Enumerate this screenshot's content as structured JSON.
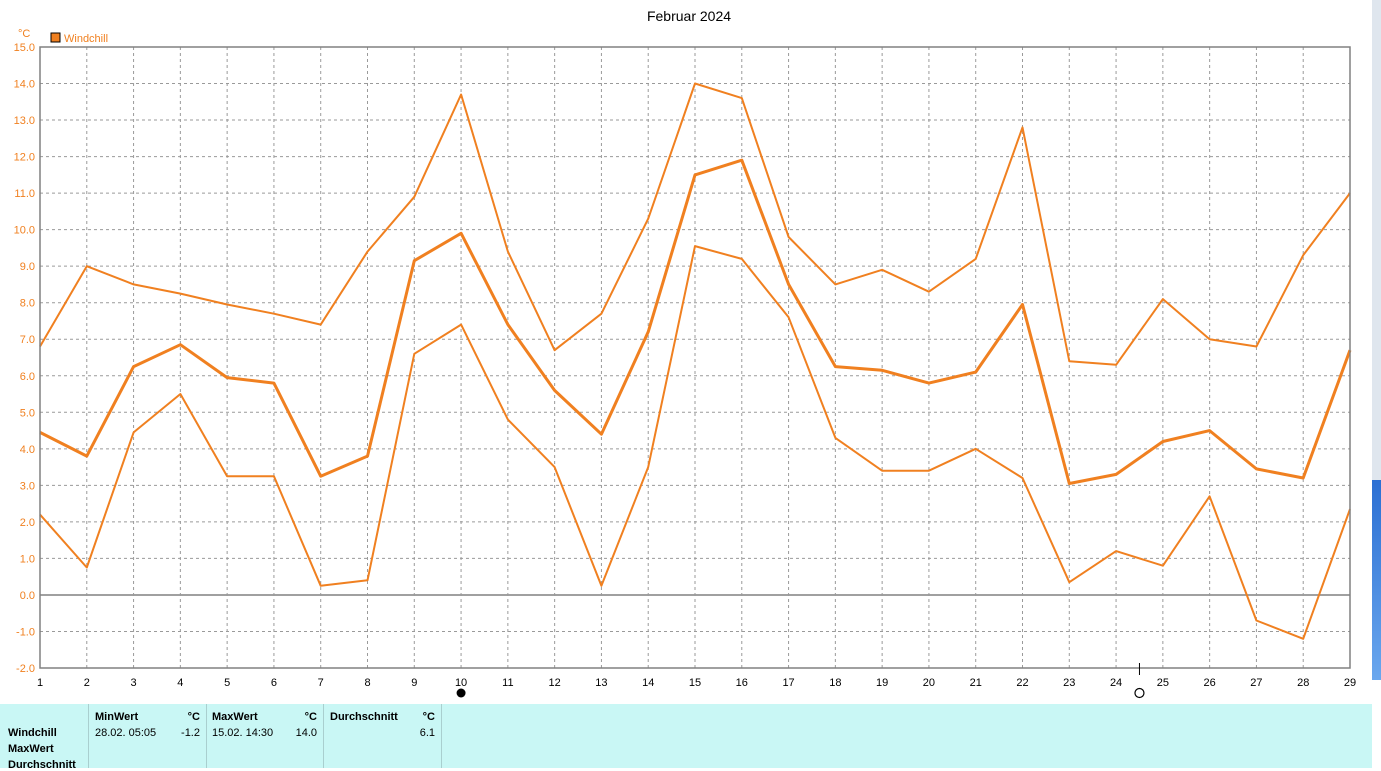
{
  "chart_data": {
    "type": "line",
    "title": "Februar 2024",
    "ylabel": "°C",
    "legend": "Windchill",
    "legend_position": "top-left",
    "grid": true,
    "x": [
      1,
      2,
      3,
      4,
      5,
      6,
      7,
      8,
      9,
      10,
      11,
      12,
      13,
      14,
      15,
      16,
      17,
      18,
      19,
      20,
      21,
      22,
      23,
      24,
      25,
      26,
      27,
      28,
      29
    ],
    "ylim": [
      -2.0,
      15.0
    ],
    "yticks": [
      "15.0",
      "14.0",
      "13.0",
      "12.0",
      "11.0",
      "10.0",
      "9.0",
      "8.0",
      "7.0",
      "6.0",
      "5.0",
      "4.0",
      "3.0",
      "2.0",
      "1.0",
      "0.0",
      "-1.0",
      "-2.0"
    ],
    "series": [
      {
        "role": "max",
        "values": [
          6.8,
          9.0,
          8.5,
          8.25,
          7.95,
          7.7,
          7.4,
          9.4,
          10.9,
          13.7,
          9.4,
          6.7,
          7.7,
          10.3,
          14.0,
          13.6,
          9.8,
          8.5,
          8.9,
          8.3,
          9.2,
          12.8,
          6.4,
          6.3,
          8.1,
          7.0,
          6.8,
          9.3,
          11.0
        ]
      },
      {
        "role": "avg",
        "values": [
          4.45,
          3.8,
          6.25,
          6.85,
          5.95,
          5.8,
          3.25,
          3.8,
          9.15,
          9.9,
          7.4,
          5.6,
          4.4,
          7.2,
          11.5,
          11.9,
          8.5,
          6.25,
          6.15,
          5.8,
          6.1,
          7.95,
          3.05,
          3.3,
          4.2,
          4.5,
          3.45,
          3.2,
          6.7
        ]
      },
      {
        "role": "min",
        "values": [
          2.2,
          0.75,
          4.45,
          5.5,
          3.25,
          3.25,
          0.25,
          0.4,
          6.6,
          7.4,
          4.8,
          3.5,
          0.25,
          3.5,
          9.55,
          9.2,
          7.6,
          4.3,
          3.4,
          3.4,
          4.0,
          3.2,
          0.35,
          1.2,
          0.8,
          2.7,
          -0.7,
          -1.2,
          2.35
        ]
      }
    ],
    "line_color": "#f08020",
    "markers": {
      "full_moon_day": 10,
      "new_moon_day": 24.5
    }
  },
  "stats": {
    "headers": {
      "min": "MinWert",
      "max": "MaxWert",
      "avg": "Durchschnitt",
      "unit": "°C"
    },
    "row_labels": [
      "Windchill",
      "MaxWert",
      "Durchschnitt"
    ],
    "min": {
      "datetime": "28.02.  05:05",
      "value": "-1.2"
    },
    "max": {
      "datetime": "15.02.  14:30",
      "value": "14.0"
    },
    "avg": {
      "value": "6.1"
    }
  }
}
